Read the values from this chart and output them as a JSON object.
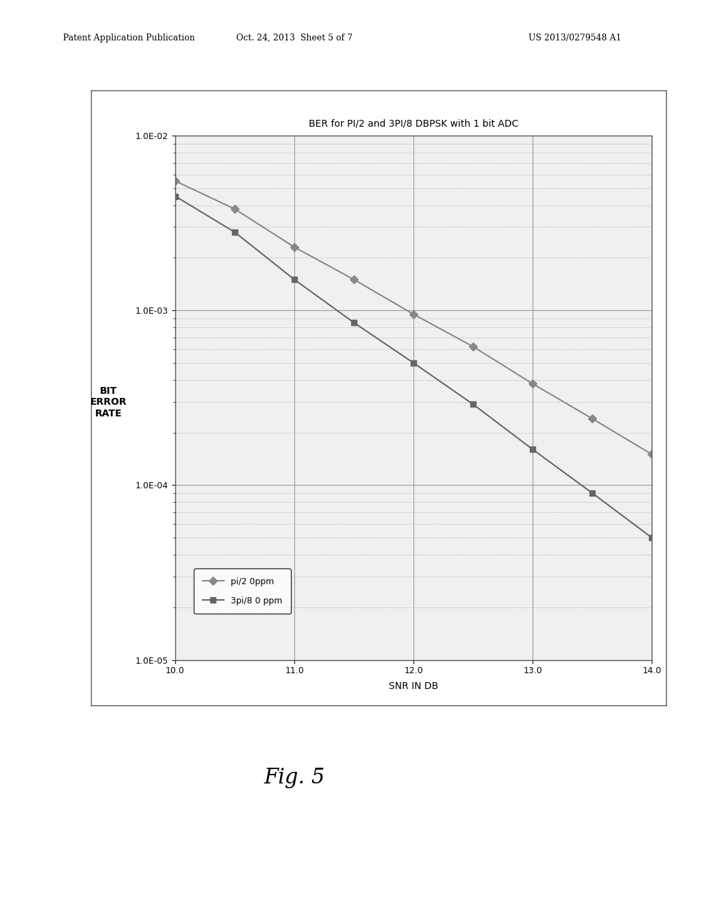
{
  "title": "BER for PI/2 and 3PI/8 DBPSK with 1 bit ADC",
  "xlabel": "SNR IN DB",
  "ylabel": "BIT\nERROR\nRATE",
  "xlim": [
    10.0,
    14.0
  ],
  "ylim": [
    1e-05,
    0.01
  ],
  "xticks": [
    10.0,
    11.0,
    12.0,
    13.0,
    14.0
  ],
  "yticks": [
    1e-05,
    0.0001,
    0.001,
    0.01
  ],
  "ytick_labels": [
    "1.0E-05",
    "1.0E-04",
    "1.0E-03",
    "1.0E-02"
  ],
  "series": [
    {
      "label": "pi/2 0ppm",
      "x": [
        10.0,
        10.5,
        11.0,
        11.5,
        12.0,
        12.5,
        13.0,
        13.5,
        14.0
      ],
      "y": [
        0.0055,
        0.0038,
        0.0023,
        0.0015,
        0.00095,
        0.00062,
        0.00038,
        0.00024,
        0.00015
      ],
      "color": "#888888",
      "marker": "D",
      "markersize": 6,
      "linewidth": 1.5
    },
    {
      "label": "3pi/8 0 ppm",
      "x": [
        10.0,
        10.5,
        11.0,
        11.5,
        12.0,
        12.5,
        13.0,
        13.5,
        14.0
      ],
      "y": [
        0.0045,
        0.0028,
        0.0015,
        0.00085,
        0.0005,
        0.00029,
        0.00016,
        9e-05,
        5e-05
      ],
      "color": "#666666",
      "marker": "s",
      "markersize": 6,
      "linewidth": 1.5
    }
  ],
  "background_color": "#ffffff",
  "plot_bg_color": "#f0f0f0",
  "grid_major_color": "#999999",
  "grid_minor_color": "#bbbbbb",
  "border_color": "#555555",
  "fig_width": 10.24,
  "fig_height": 13.2,
  "header_left": "Patent Application Publication",
  "header_mid": "Oct. 24, 2013  Sheet 5 of 7",
  "header_right": "US 2013/0279548 A1",
  "caption": "Fig. 5"
}
